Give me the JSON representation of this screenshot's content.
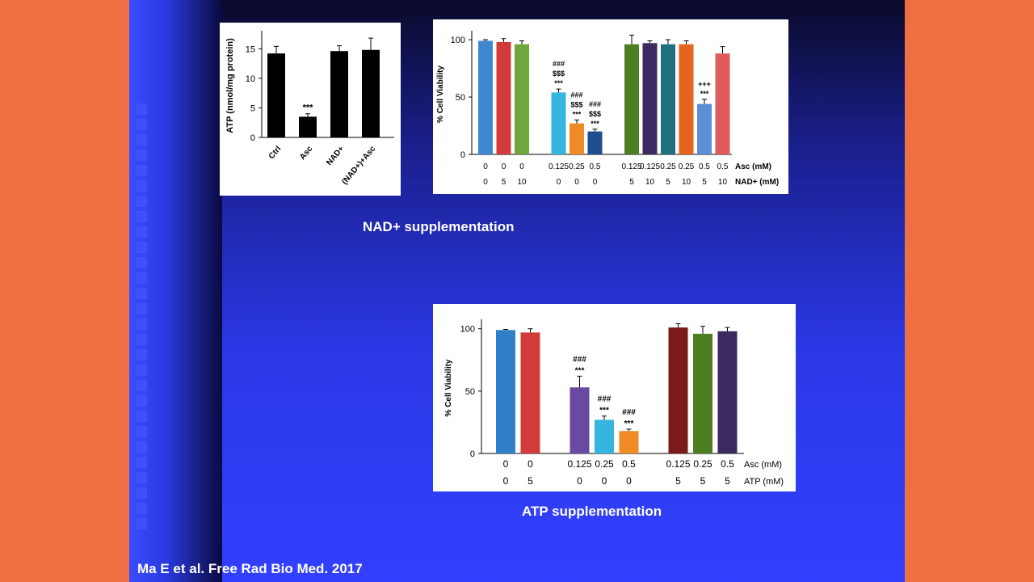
{
  "captions": {
    "nad": "NAD+ supplementation",
    "atp": "ATP supplementation",
    "reference": "Ma E et al. Free Rad Bio Med.  2017"
  },
  "chart_data": [
    {
      "type": "bar",
      "ylabel": "ATP  (nmol/mg protein)",
      "ylim": [
        0,
        17.5
      ],
      "yticks": [
        0,
        5,
        10,
        15
      ],
      "categories": [
        "Ctrl",
        "Asc",
        "NAD+",
        "(NAD+)+Asc"
      ],
      "values": [
        14.2,
        3.5,
        14.6,
        14.8
      ],
      "errors": [
        1.2,
        0.5,
        0.9,
        2.0
      ],
      "annotations": [
        "",
        "***",
        "",
        ""
      ],
      "colors": [
        "#000000",
        "#000000",
        "#000000",
        "#000000"
      ]
    },
    {
      "type": "bar",
      "ylabel": "% Cell Viability",
      "ylim": [
        0,
        105
      ],
      "yticks": [
        0,
        50,
        100
      ],
      "row_labels": [
        "Asc (mM)",
        "NAD+ (mM)"
      ],
      "row1": [
        "0",
        "0",
        "0",
        "0.125",
        "0.25",
        "0.5",
        "0.125",
        "0.125",
        "0.25",
        "0.25",
        "0.5",
        "0.5"
      ],
      "row2": [
        "0",
        "5",
        "10",
        "0",
        "0",
        "0",
        "5",
        "10",
        "5",
        "10",
        "5",
        "10"
      ],
      "values": [
        99,
        98,
        96,
        54,
        27,
        20,
        96,
        97,
        96,
        96,
        44,
        88
      ],
      "errors": [
        1,
        3,
        3,
        3,
        3,
        2,
        8,
        2,
        4,
        3,
        4,
        6
      ],
      "annotations": [
        "",
        "",
        "",
        "###\n$$$\n***",
        "###\n$$$\n***",
        "###\n$$$\n***",
        "",
        "",
        "",
        "",
        "+++\n***",
        ""
      ],
      "colors": [
        "#3f87d0",
        "#d33a3a",
        "#6ea83a",
        "#35b6de",
        "#f08a24",
        "#1f4e8c",
        "#4d7f22",
        "#3b2a5f",
        "#1f6f7f",
        "#e5651f",
        "#5b8fd6",
        "#e05c5c"
      ],
      "gap_after": [
        2,
        5
      ]
    },
    {
      "type": "bar",
      "ylabel": "% Cell Viability",
      "ylim": [
        0,
        105
      ],
      "yticks": [
        0,
        50,
        100
      ],
      "row_labels": [
        "Asc (mM)",
        "ATP (mM)"
      ],
      "row1": [
        "0",
        "0",
        "0.125",
        "0.25",
        "0.5",
        "0.125",
        "0.25",
        "0.5"
      ],
      "row2": [
        "0",
        "5",
        "0",
        "0",
        "0",
        "5",
        "5",
        "5"
      ],
      "values": [
        99,
        97,
        53,
        27,
        18,
        101,
        96,
        98
      ],
      "errors": [
        0.5,
        3,
        9,
        3,
        1.5,
        3,
        6,
        3
      ],
      "annotations": [
        "",
        "",
        "###\n***",
        "###\n***",
        "###\n***",
        "",
        "",
        ""
      ],
      "colors": [
        "#2f7fc8",
        "#d33a3a",
        "#6a4aa0",
        "#35b6de",
        "#f08a24",
        "#7a1a1a",
        "#4d7f22",
        "#3b2a5f"
      ],
      "gap_after": [
        1,
        4
      ]
    }
  ]
}
